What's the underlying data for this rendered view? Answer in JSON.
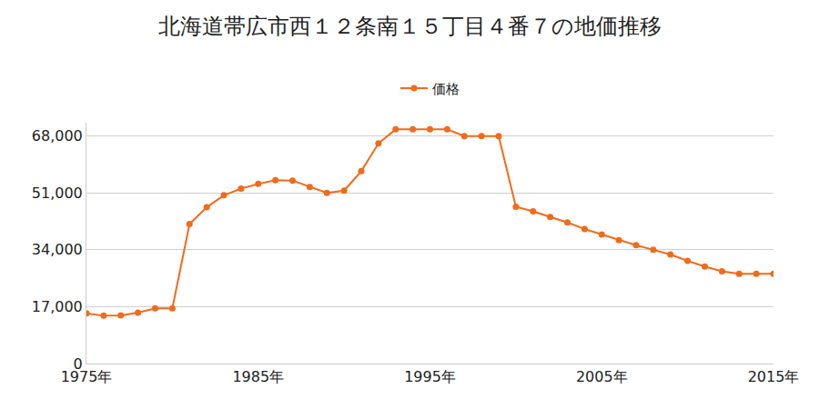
{
  "chart_data": {
    "type": "line",
    "title": "北海道帯広市西１２条南１５丁目４番７の地価推移",
    "legend": "top",
    "grid": true,
    "marker": "circle",
    "series": [
      {
        "name": "価格",
        "color": "#f26a1b",
        "x": [
          1975,
          1976,
          1977,
          1978,
          1979,
          1980,
          1981,
          1982,
          1983,
          1984,
          1985,
          1986,
          1987,
          1988,
          1989,
          1990,
          1991,
          1992,
          1993,
          1994,
          1995,
          1996,
          1997,
          1998,
          1999,
          2000,
          2001,
          2002,
          2003,
          2004,
          2005,
          2006,
          2007,
          2008,
          2009,
          2010,
          2011,
          2012,
          2013,
          2014,
          2015
        ],
        "values": [
          15000,
          14300,
          14400,
          15200,
          16500,
          16500,
          41700,
          46700,
          50300,
          52300,
          53700,
          54800,
          54700,
          52800,
          51000,
          51700,
          57500,
          65800,
          70000,
          70000,
          70000,
          70000,
          68000,
          68000,
          68000,
          46900,
          45500,
          43800,
          42200,
          40200,
          38600,
          36900,
          35400,
          34000,
          32600,
          30700,
          29000,
          27600,
          26800,
          26800,
          26800
        ]
      }
    ],
    "xlim": [
      1975,
      2015
    ],
    "xticks": [
      {
        "value": 1975,
        "label": "1975年"
      },
      {
        "value": 1985,
        "label": "1985年"
      },
      {
        "value": 1995,
        "label": "1995年"
      },
      {
        "value": 2005,
        "label": "2005年"
      },
      {
        "value": 2015,
        "label": "2015年"
      }
    ],
    "ylim": [
      0,
      72000
    ],
    "yticks": [
      0,
      {
        "value": 17000,
        "label": "17,000"
      },
      {
        "value": 34000,
        "label": "34,000"
      },
      {
        "value": 51000,
        "label": "51,000"
      },
      {
        "value": 68000,
        "label": "68,000"
      }
    ]
  }
}
